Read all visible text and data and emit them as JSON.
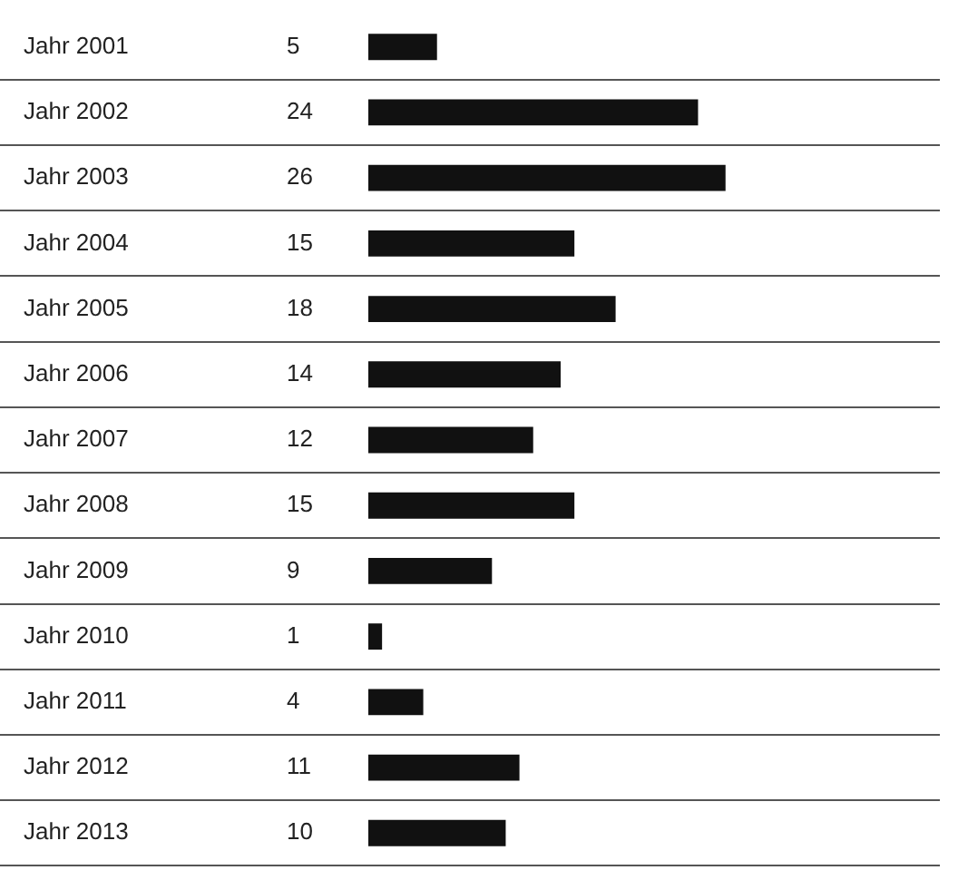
{
  "chart_data": {
    "type": "bar",
    "orientation": "horizontal",
    "categories": [
      "Jahr 2001",
      "Jahr 2002",
      "Jahr 2003",
      "Jahr 2004",
      "Jahr 2005",
      "Jahr 2006",
      "Jahr 2007",
      "Jahr 2008",
      "Jahr 2009",
      "Jahr 2010",
      "Jahr 2011",
      "Jahr 2012",
      "Jahr 2013"
    ],
    "values": [
      5,
      24,
      26,
      15,
      18,
      14,
      12,
      15,
      9,
      1,
      4,
      11,
      10
    ],
    "color": "#111111",
    "data_labels": true,
    "grid": "y",
    "legend": false
  }
}
